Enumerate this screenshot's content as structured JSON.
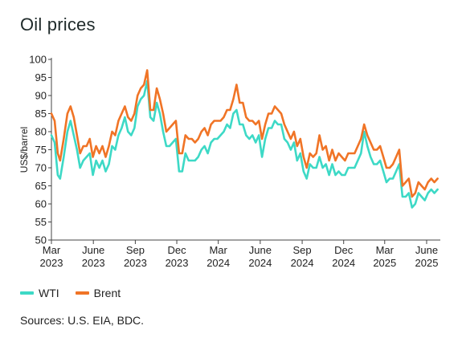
{
  "title": "Oil prices",
  "source": "Sources: U.S. EIA, BDC.",
  "colors": {
    "wti": "#3dd9c6",
    "brent": "#f07426",
    "axis": "#444444"
  },
  "chart_data": {
    "type": "line",
    "title": "Oil prices",
    "ylabel": "US$/barrel",
    "xlabel": "",
    "ylim": [
      50,
      100
    ],
    "yticks": [
      50,
      55,
      60,
      65,
      70,
      75,
      80,
      85,
      90,
      95,
      100
    ],
    "xlim": [
      "2023-03-01",
      "2025-07-01"
    ],
    "xticks": [
      {
        "date": "2023-03-01",
        "label1": "Mar",
        "label2": "2023"
      },
      {
        "date": "2023-06-01",
        "label1": "June",
        "label2": "2023"
      },
      {
        "date": "2023-09-01",
        "label1": "Sep",
        "label2": "2023"
      },
      {
        "date": "2023-12-01",
        "label1": "Dec",
        "label2": "2023"
      },
      {
        "date": "2024-03-01",
        "label1": "Mar",
        "label2": "2024"
      },
      {
        "date": "2024-06-01",
        "label1": "June",
        "label2": "2024"
      },
      {
        "date": "2024-09-01",
        "label1": "Sep",
        "label2": "2024"
      },
      {
        "date": "2024-12-01",
        "label1": "Dec",
        "label2": "2024"
      },
      {
        "date": "2025-03-01",
        "label1": "Mar",
        "label2": "2025"
      },
      {
        "date": "2025-06-01",
        "label1": "June",
        "label2": "2025"
      }
    ],
    "grid": false,
    "legend": "bottom-left",
    "series": [
      {
        "name": "WTI",
        "color": "#3dd9c6",
        "points": [
          [
            "2023-03-01",
            79
          ],
          [
            "2023-03-08",
            77
          ],
          [
            "2023-03-15",
            68
          ],
          [
            "2023-03-20",
            67
          ],
          [
            "2023-03-28",
            73
          ],
          [
            "2023-04-05",
            80
          ],
          [
            "2023-04-12",
            83
          ],
          [
            "2023-04-19",
            79
          ],
          [
            "2023-04-26",
            75
          ],
          [
            "2023-05-03",
            70
          ],
          [
            "2023-05-10",
            72
          ],
          [
            "2023-05-17",
            73
          ],
          [
            "2023-05-24",
            74
          ],
          [
            "2023-05-31",
            68
          ],
          [
            "2023-06-07",
            72
          ],
          [
            "2023-06-14",
            70
          ],
          [
            "2023-06-21",
            72
          ],
          [
            "2023-06-28",
            69
          ],
          [
            "2023-07-05",
            71
          ],
          [
            "2023-07-12",
            76
          ],
          [
            "2023-07-19",
            75
          ],
          [
            "2023-07-26",
            79
          ],
          [
            "2023-08-02",
            81
          ],
          [
            "2023-08-09",
            84
          ],
          [
            "2023-08-16",
            80
          ],
          [
            "2023-08-23",
            79
          ],
          [
            "2023-08-30",
            81
          ],
          [
            "2023-09-06",
            87
          ],
          [
            "2023-09-13",
            89
          ],
          [
            "2023-09-20",
            90
          ],
          [
            "2023-09-27",
            94
          ],
          [
            "2023-10-04",
            84
          ],
          [
            "2023-10-11",
            83
          ],
          [
            "2023-10-18",
            88
          ],
          [
            "2023-10-25",
            85
          ],
          [
            "2023-11-01",
            80
          ],
          [
            "2023-11-08",
            76
          ],
          [
            "2023-11-15",
            76
          ],
          [
            "2023-11-22",
            77
          ],
          [
            "2023-11-29",
            78
          ],
          [
            "2023-12-06",
            69
          ],
          [
            "2023-12-13",
            69
          ],
          [
            "2023-12-20",
            74
          ],
          [
            "2023-12-27",
            72
          ],
          [
            "2024-01-03",
            72
          ],
          [
            "2024-01-10",
            72
          ],
          [
            "2024-01-17",
            73
          ],
          [
            "2024-01-24",
            75
          ],
          [
            "2024-01-31",
            76
          ],
          [
            "2024-02-07",
            74
          ],
          [
            "2024-02-14",
            77
          ],
          [
            "2024-02-21",
            78
          ],
          [
            "2024-02-28",
            78
          ],
          [
            "2024-03-06",
            79
          ],
          [
            "2024-03-13",
            80
          ],
          [
            "2024-03-20",
            82
          ],
          [
            "2024-03-27",
            81
          ],
          [
            "2024-04-03",
            85
          ],
          [
            "2024-04-10",
            86
          ],
          [
            "2024-04-17",
            82
          ],
          [
            "2024-04-24",
            82
          ],
          [
            "2024-05-01",
            79
          ],
          [
            "2024-05-08",
            78
          ],
          [
            "2024-05-15",
            79
          ],
          [
            "2024-05-22",
            77
          ],
          [
            "2024-05-29",
            79
          ],
          [
            "2024-06-05",
            73
          ],
          [
            "2024-06-12",
            78
          ],
          [
            "2024-06-19",
            81
          ],
          [
            "2024-06-26",
            81
          ],
          [
            "2024-07-03",
            83
          ],
          [
            "2024-07-10",
            82
          ],
          [
            "2024-07-17",
            82
          ],
          [
            "2024-07-24",
            78
          ],
          [
            "2024-07-31",
            77
          ],
          [
            "2024-08-07",
            75
          ],
          [
            "2024-08-14",
            77
          ],
          [
            "2024-08-21",
            72
          ],
          [
            "2024-08-28",
            74
          ],
          [
            "2024-09-04",
            69
          ],
          [
            "2024-09-11",
            67
          ],
          [
            "2024-09-18",
            71
          ],
          [
            "2024-09-25",
            70
          ],
          [
            "2024-10-02",
            70
          ],
          [
            "2024-10-09",
            73
          ],
          [
            "2024-10-16",
            70
          ],
          [
            "2024-10-23",
            71
          ],
          [
            "2024-10-30",
            68
          ],
          [
            "2024-11-06",
            71
          ],
          [
            "2024-11-13",
            68
          ],
          [
            "2024-11-20",
            69
          ],
          [
            "2024-11-27",
            68
          ],
          [
            "2024-12-04",
            68
          ],
          [
            "2024-12-11",
            70
          ],
          [
            "2024-12-18",
            70
          ],
          [
            "2024-12-25",
            70
          ],
          [
            "2025-01-01",
            72
          ],
          [
            "2025-01-08",
            74
          ],
          [
            "2025-01-15",
            80
          ],
          [
            "2025-01-22",
            76
          ],
          [
            "2025-01-29",
            73
          ],
          [
            "2025-02-05",
            71
          ],
          [
            "2025-02-12",
            71
          ],
          [
            "2025-02-19",
            72
          ],
          [
            "2025-02-26",
            69
          ],
          [
            "2025-03-05",
            66
          ],
          [
            "2025-03-12",
            67
          ],
          [
            "2025-03-19",
            67
          ],
          [
            "2025-03-26",
            69
          ],
          [
            "2025-04-02",
            71
          ],
          [
            "2025-04-09",
            62
          ],
          [
            "2025-04-16",
            62
          ],
          [
            "2025-04-23",
            63
          ],
          [
            "2025-04-30",
            59
          ],
          [
            "2025-05-07",
            60
          ],
          [
            "2025-05-14",
            63
          ],
          [
            "2025-05-21",
            62
          ],
          [
            "2025-05-28",
            61
          ],
          [
            "2025-06-04",
            63
          ],
          [
            "2025-06-11",
            64
          ],
          [
            "2025-06-18",
            63
          ],
          [
            "2025-06-25",
            64
          ]
        ]
      },
      {
        "name": "Brent",
        "color": "#f07426",
        "points": [
          [
            "2023-03-01",
            85
          ],
          [
            "2023-03-08",
            83
          ],
          [
            "2023-03-15",
            74
          ],
          [
            "2023-03-20",
            72
          ],
          [
            "2023-03-28",
            78
          ],
          [
            "2023-04-05",
            85
          ],
          [
            "2023-04-12",
            87
          ],
          [
            "2023-04-19",
            84
          ],
          [
            "2023-04-26",
            79
          ],
          [
            "2023-05-03",
            74
          ],
          [
            "2023-05-10",
            76
          ],
          [
            "2023-05-17",
            76
          ],
          [
            "2023-05-24",
            78
          ],
          [
            "2023-05-31",
            73
          ],
          [
            "2023-06-07",
            76
          ],
          [
            "2023-06-14",
            74
          ],
          [
            "2023-06-21",
            76
          ],
          [
            "2023-06-28",
            73
          ],
          [
            "2023-07-05",
            76
          ],
          [
            "2023-07-12",
            80
          ],
          [
            "2023-07-19",
            79
          ],
          [
            "2023-07-26",
            83
          ],
          [
            "2023-08-02",
            85
          ],
          [
            "2023-08-09",
            87
          ],
          [
            "2023-08-16",
            84
          ],
          [
            "2023-08-23",
            83
          ],
          [
            "2023-08-30",
            85
          ],
          [
            "2023-09-06",
            90
          ],
          [
            "2023-09-13",
            92
          ],
          [
            "2023-09-20",
            93
          ],
          [
            "2023-09-27",
            97
          ],
          [
            "2023-10-04",
            86
          ],
          [
            "2023-10-11",
            86
          ],
          [
            "2023-10-18",
            92
          ],
          [
            "2023-10-25",
            89
          ],
          [
            "2023-11-01",
            85
          ],
          [
            "2023-11-08",
            80
          ],
          [
            "2023-11-15",
            81
          ],
          [
            "2023-11-22",
            82
          ],
          [
            "2023-11-29",
            83
          ],
          [
            "2023-12-06",
            74
          ],
          [
            "2023-12-13",
            74
          ],
          [
            "2023-12-20",
            79
          ],
          [
            "2023-12-27",
            78
          ],
          [
            "2024-01-03",
            78
          ],
          [
            "2024-01-10",
            77
          ],
          [
            "2024-01-17",
            78
          ],
          [
            "2024-01-24",
            80
          ],
          [
            "2024-01-31",
            81
          ],
          [
            "2024-02-07",
            79
          ],
          [
            "2024-02-14",
            82
          ],
          [
            "2024-02-21",
            83
          ],
          [
            "2024-02-28",
            83
          ],
          [
            "2024-03-06",
            83
          ],
          [
            "2024-03-13",
            84
          ],
          [
            "2024-03-20",
            86
          ],
          [
            "2024-03-27",
            86
          ],
          [
            "2024-04-03",
            89
          ],
          [
            "2024-04-10",
            93
          ],
          [
            "2024-04-17",
            88
          ],
          [
            "2024-04-24",
            88
          ],
          [
            "2024-05-01",
            84
          ],
          [
            "2024-05-08",
            83
          ],
          [
            "2024-05-15",
            83
          ],
          [
            "2024-05-22",
            82
          ],
          [
            "2024-05-29",
            83
          ],
          [
            "2024-06-05",
            78
          ],
          [
            "2024-06-12",
            82
          ],
          [
            "2024-06-19",
            85
          ],
          [
            "2024-06-26",
            85
          ],
          [
            "2024-07-03",
            87
          ],
          [
            "2024-07-10",
            86
          ],
          [
            "2024-07-17",
            85
          ],
          [
            "2024-07-24",
            82
          ],
          [
            "2024-07-31",
            80
          ],
          [
            "2024-08-07",
            78
          ],
          [
            "2024-08-14",
            80
          ],
          [
            "2024-08-21",
            76
          ],
          [
            "2024-08-28",
            78
          ],
          [
            "2024-09-04",
            73
          ],
          [
            "2024-09-11",
            70
          ],
          [
            "2024-09-18",
            74
          ],
          [
            "2024-09-25",
            73
          ],
          [
            "2024-10-02",
            74
          ],
          [
            "2024-10-09",
            79
          ],
          [
            "2024-10-16",
            75
          ],
          [
            "2024-10-23",
            76
          ],
          [
            "2024-10-30",
            72
          ],
          [
            "2024-11-06",
            75
          ],
          [
            "2024-11-13",
            72
          ],
          [
            "2024-11-20",
            74
          ],
          [
            "2024-11-27",
            73
          ],
          [
            "2024-12-04",
            72
          ],
          [
            "2024-12-11",
            74
          ],
          [
            "2024-12-18",
            74
          ],
          [
            "2024-12-25",
            74
          ],
          [
            "2025-01-01",
            76
          ],
          [
            "2025-01-08",
            78
          ],
          [
            "2025-01-15",
            82
          ],
          [
            "2025-01-22",
            79
          ],
          [
            "2025-01-29",
            77
          ],
          [
            "2025-02-05",
            75
          ],
          [
            "2025-02-12",
            75
          ],
          [
            "2025-02-19",
            76
          ],
          [
            "2025-02-26",
            73
          ],
          [
            "2025-03-05",
            70
          ],
          [
            "2025-03-12",
            70
          ],
          [
            "2025-03-19",
            71
          ],
          [
            "2025-03-26",
            73
          ],
          [
            "2025-04-02",
            75
          ],
          [
            "2025-04-09",
            65
          ],
          [
            "2025-04-16",
            66
          ],
          [
            "2025-04-23",
            67
          ],
          [
            "2025-04-30",
            62
          ],
          [
            "2025-05-07",
            63
          ],
          [
            "2025-05-14",
            66
          ],
          [
            "2025-05-21",
            65
          ],
          [
            "2025-05-28",
            64
          ],
          [
            "2025-06-04",
            66
          ],
          [
            "2025-06-11",
            67
          ],
          [
            "2025-06-18",
            66
          ],
          [
            "2025-06-25",
            67
          ]
        ]
      }
    ]
  }
}
